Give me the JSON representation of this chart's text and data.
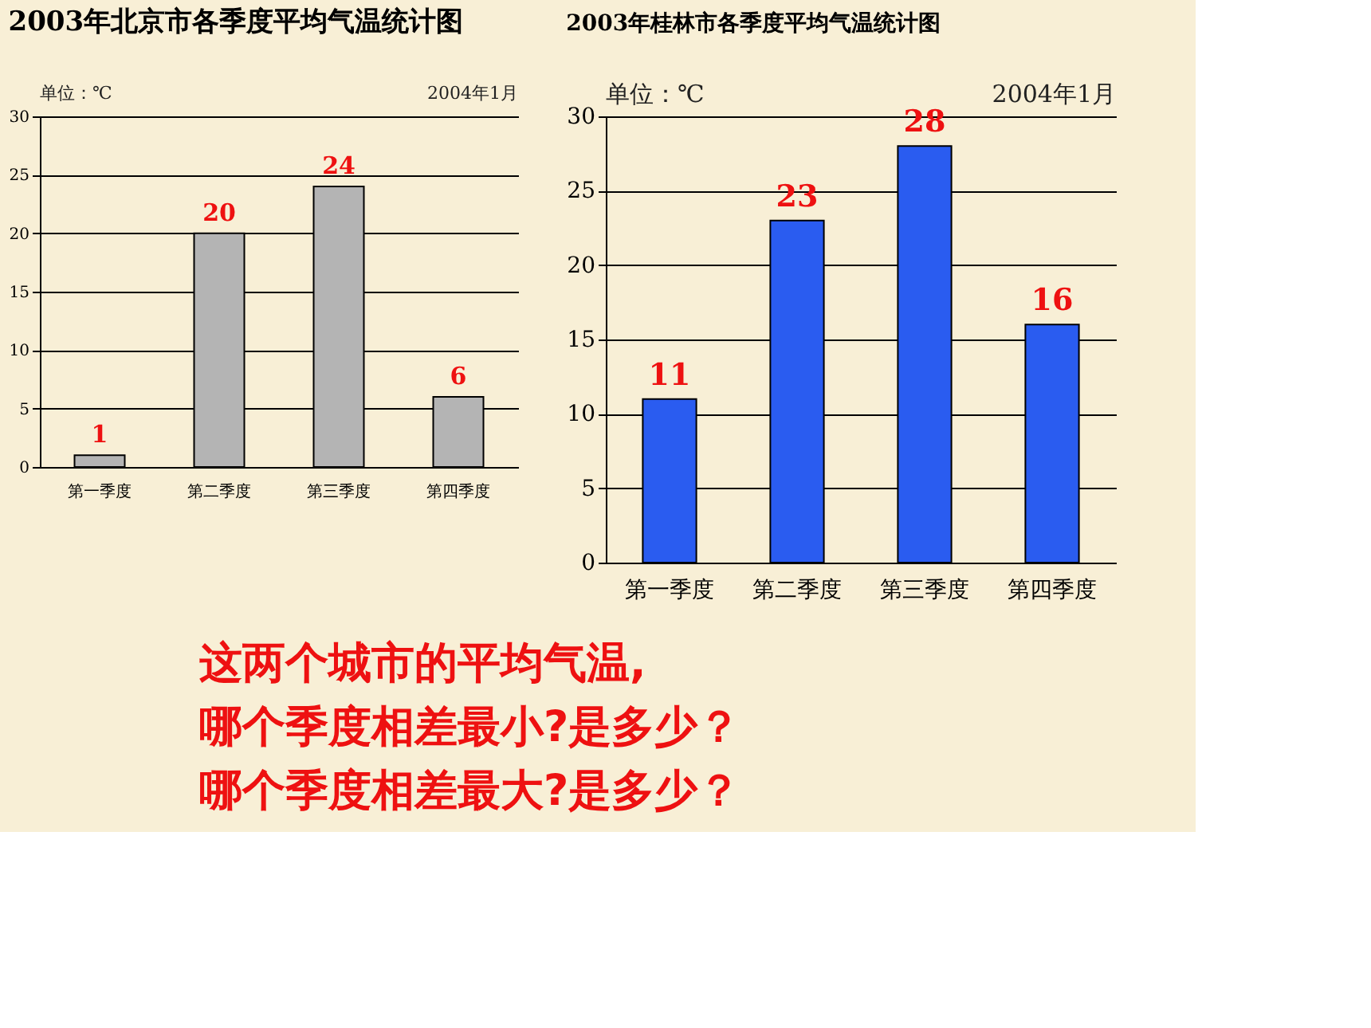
{
  "chart_data": [
    {
      "type": "bar",
      "title": "2003年北京市各季度平均气温统计图",
      "categories": [
        "第一季度",
        "第二季度",
        "第三季度",
        "第四季度"
      ],
      "values": [
        1,
        20,
        24,
        6
      ],
      "color": "#b4b4b4",
      "ylim": [
        0,
        30
      ],
      "yticks": [
        0,
        5,
        10,
        15,
        20,
        25,
        30
      ],
      "grid": "y",
      "data_labels": true,
      "annotations": [
        "单位：℃",
        "2004年1月"
      ]
    },
    {
      "type": "bar",
      "title": "2003年桂林市各季度平均气温统计图",
      "categories": [
        "第一季度",
        "第二季度",
        "第三季度",
        "第四季度"
      ],
      "values": [
        11,
        23,
        28,
        16
      ],
      "color": "#2a5cf0",
      "ylim": [
        0,
        30
      ],
      "yticks": [
        0,
        5,
        10,
        15,
        20,
        25,
        30
      ],
      "grid": "y",
      "data_labels": true,
      "annotations": [
        "单位：℃",
        "2004年1月"
      ]
    },
    {
      "type": "other",
      "annotations": [
        "这两个城市的平均气温,",
        "哪个季度相差最小?是多少？",
        "哪个季度相差最大?是多少？"
      ]
    }
  ]
}
